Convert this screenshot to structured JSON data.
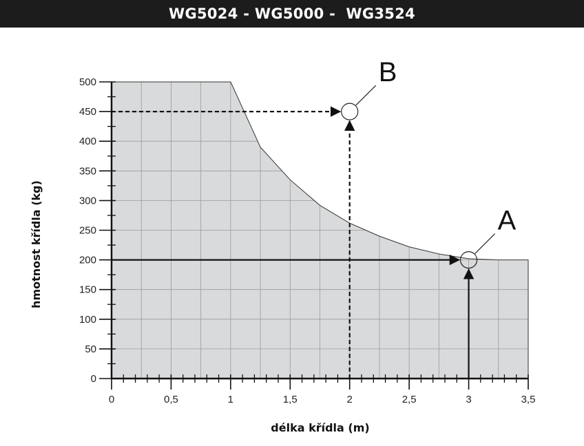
{
  "header": {
    "title": "WG5024 - WG5000 -  WG3524"
  },
  "colors": {
    "header_bg": "#1c1c1c",
    "header_text": "#ffffff",
    "area_fill": "#d9dadb",
    "grid": "#9a9a9a",
    "line": "#111111"
  },
  "chart_data": {
    "type": "area",
    "xlabel": "délka křídla (m)",
    "ylabel": "hmotnost křídla (kg)",
    "xlim": [
      0,
      3.5
    ],
    "ylim": [
      0,
      500
    ],
    "x_ticks": [
      0,
      0.5,
      1,
      1.5,
      2,
      2.5,
      3,
      3.5
    ],
    "x_tick_labels": [
      "0",
      "0,5",
      "1",
      "1,5",
      "2",
      "2,5",
      "3",
      "3,5"
    ],
    "y_ticks": [
      0,
      50,
      100,
      150,
      200,
      250,
      300,
      350,
      400,
      450,
      500
    ],
    "y_tick_labels": [
      "0",
      "50",
      "100",
      "150",
      "200",
      "250",
      "300",
      "350",
      "400",
      "450",
      "500"
    ],
    "grid": true,
    "series": [
      {
        "x": [
          0,
          1,
          1.25,
          1.5,
          1.75,
          2,
          2.25,
          2.5,
          2.75,
          3,
          3.25,
          3.5
        ],
        "y": [
          500,
          500,
          390,
          335,
          292,
          262,
          240,
          222,
          210,
          202,
          200,
          200
        ]
      }
    ],
    "annotations": [
      {
        "label": "A",
        "x": 3,
        "y": 200,
        "style": "solid"
      },
      {
        "label": "B",
        "x": 2,
        "y": 450,
        "style": "dashed"
      }
    ]
  }
}
